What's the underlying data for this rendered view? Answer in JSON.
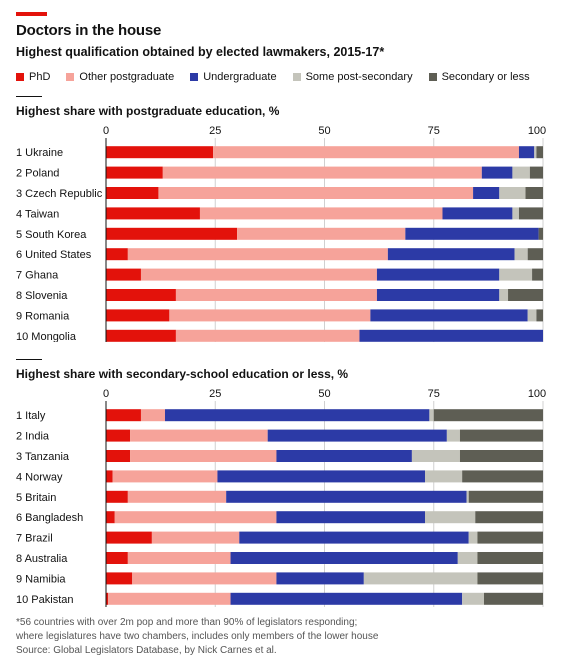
{
  "header": {
    "title": "Doctors in the house",
    "subtitle": "Highest qualification obtained by elected lawmakers, 2015-17*"
  },
  "legend": [
    {
      "label": "PhD",
      "color": "#e3120b"
    },
    {
      "label": "Other postgraduate",
      "color": "#f6a39a"
    },
    {
      "label": "Undergraduate",
      "color": "#2c3aa6"
    },
    {
      "label": "Some post-secondary",
      "color": "#c4c4bb"
    },
    {
      "label": "Secondary or less",
      "color": "#5e5e54"
    }
  ],
  "chart_data": [
    {
      "type": "bar",
      "orientation": "horizontal",
      "stacked": true,
      "title": "Highest share with postgraduate education, %",
      "categories": [
        "1 Ukraine",
        "2 Poland",
        "3 Czech Republic",
        "4 Taiwan",
        "5 South Korea",
        "6 United States",
        "7 Ghana",
        "8 Slovenia",
        "9 Romania",
        "10 Mongolia"
      ],
      "series": [
        {
          "name": "PhD",
          "values": [
            24.5,
            13,
            12,
            21.5,
            30,
            5,
            8,
            16,
            14.5,
            16
          ]
        },
        {
          "name": "Other postgraduate",
          "values": [
            70,
            73,
            72,
            55.5,
            38.5,
            59.5,
            54,
            46,
            46,
            42
          ]
        },
        {
          "name": "Undergraduate",
          "values": [
            3.5,
            7,
            6,
            16,
            30.5,
            29,
            28,
            28,
            36,
            42
          ]
        },
        {
          "name": "Some post-secondary",
          "values": [
            0.5,
            4,
            6,
            1.5,
            0,
            3,
            7.5,
            2,
            2,
            0
          ]
        },
        {
          "name": "Secondary or less",
          "values": [
            1.5,
            3,
            4,
            5.5,
            1,
            3.5,
            2.5,
            8,
            1.5,
            0
          ]
        }
      ],
      "xticks": [
        0,
        25,
        50,
        75,
        100
      ],
      "xlim": [
        0,
        100
      ]
    },
    {
      "type": "bar",
      "orientation": "horizontal",
      "stacked": true,
      "title": "Highest share with secondary-school education or less, %",
      "categories": [
        "1 Italy",
        "2 India",
        "3 Tanzania",
        "4 Norway",
        "5 Britain",
        "6 Bangladesh",
        "7 Brazil",
        "8 Australia",
        "9 Namibia",
        "10 Pakistan"
      ],
      "series": [
        {
          "name": "PhD",
          "values": [
            8,
            5.5,
            5.5,
            1.5,
            5,
            2,
            10.5,
            5,
            6,
            0.5
          ]
        },
        {
          "name": "Other postgraduate",
          "values": [
            5.5,
            31.5,
            33.5,
            24,
            22.5,
            37,
            20,
            23.5,
            33,
            28
          ]
        },
        {
          "name": "Undergraduate",
          "values": [
            60.5,
            41,
            31,
            47.5,
            55,
            34,
            52.5,
            52,
            20,
            53
          ]
        },
        {
          "name": "Some post-secondary",
          "values": [
            1,
            3,
            11,
            8.5,
            0.5,
            11.5,
            2,
            4.5,
            26,
            5
          ]
        },
        {
          "name": "Secondary or less",
          "values": [
            25,
            19,
            19,
            18.5,
            17,
            15.5,
            15,
            15,
            15,
            13.5
          ]
        }
      ],
      "xticks": [
        0,
        25,
        50,
        75,
        100
      ],
      "xlim": [
        0,
        100
      ]
    }
  ],
  "footnote": {
    "line1": "*56 countries with over 2m pop and more than 90% of legislators responding;",
    "line2": "where legislatures have two chambers, includes only members of the lower house",
    "source": "Source: Global Legislators Database, by Nick Carnes et al."
  }
}
